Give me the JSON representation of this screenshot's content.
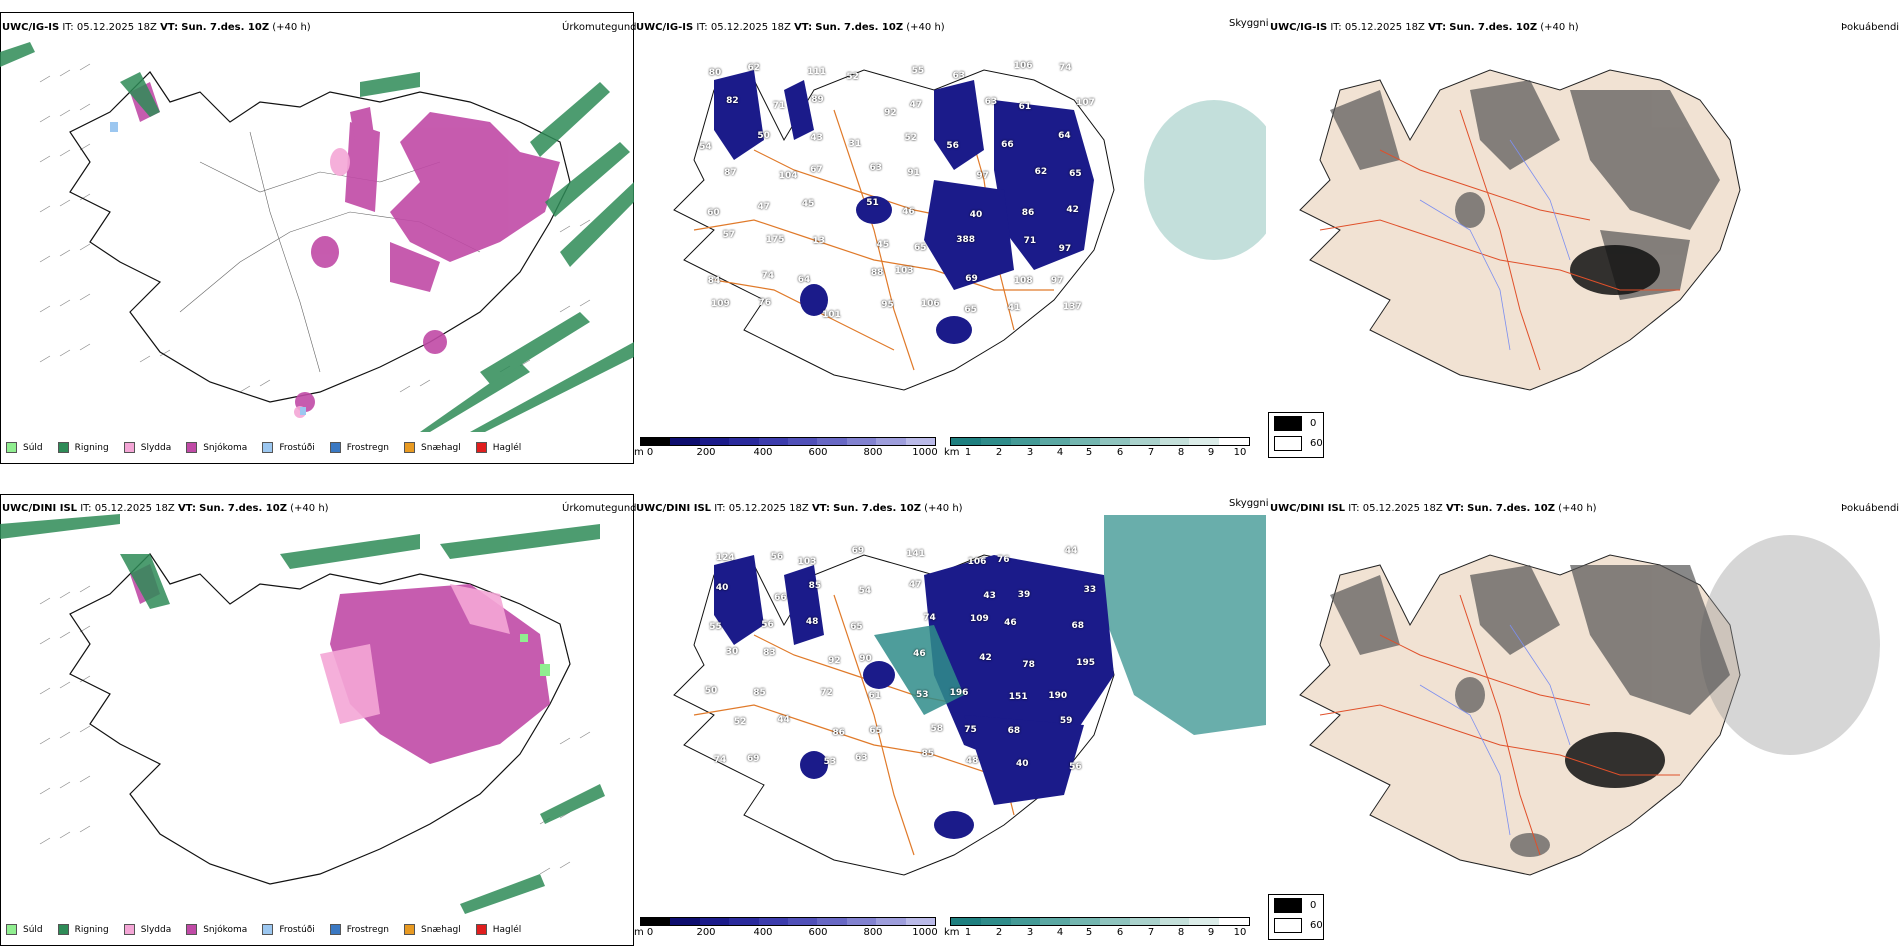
{
  "panels": [
    {
      "row": "top",
      "col": "left",
      "model": "UWC/IG-IS",
      "it_label": "IT:",
      "it_value": "05.12.2025 18Z",
      "vt_label": "VT:",
      "vt_value": "Sun. 7.des. 10Z",
      "lead": "(+40 h)",
      "title": "Úrkomutegund"
    },
    {
      "row": "top",
      "col": "mid",
      "model": "UWC/IG-IS",
      "it_label": "IT:",
      "it_value": "05.12.2025 18Z",
      "vt_label": "VT:",
      "vt_value": "Sun. 7.des. 10Z",
      "lead": "(+40 h)",
      "title": "Skyggni"
    },
    {
      "row": "top",
      "col": "right",
      "model": "UWC/IG-IS",
      "it_label": "IT:",
      "it_value": "05.12.2025 18Z",
      "vt_label": "VT:",
      "vt_value": "Sun. 7.des. 10Z",
      "lead": "(+40 h)",
      "title": "Þokuábendi"
    },
    {
      "row": "bottom",
      "col": "left",
      "model": "UWC/DINI ISL",
      "it_label": "IT:",
      "it_value": "05.12.2025 18Z",
      "vt_label": "VT:",
      "vt_value": "Sun. 7.des. 10Z",
      "lead": "(+40 h)",
      "title": "Úrkomutegund"
    },
    {
      "row": "bottom",
      "col": "mid",
      "model": "UWC/DINI ISL",
      "it_label": "IT:",
      "it_value": "05.12.2025 18Z",
      "vt_label": "VT:",
      "vt_value": "Sun. 7.des. 10Z",
      "lead": "(+40 h)",
      "title": "Skyggni"
    },
    {
      "row": "bottom",
      "col": "right",
      "model": "UWC/DINI ISL",
      "it_label": "IT:",
      "it_value": "05.12.2025 18Z",
      "vt_label": "VT:",
      "vt_value": "Sun. 7.des. 10Z",
      "lead": "(+40 h)",
      "title": "Þokuábendi"
    }
  ],
  "precip_legend": [
    {
      "label": "Súld",
      "color": "#90ee90"
    },
    {
      "label": "Rigning",
      "color": "#2e8b57"
    },
    {
      "label": "Slydda",
      "color": "#f4a6d6"
    },
    {
      "label": "Snjókoma",
      "color": "#c04aa6"
    },
    {
      "label": "Frostúði",
      "color": "#9cc7f0"
    },
    {
      "label": "Frostregn",
      "color": "#3a78c2"
    },
    {
      "label": "Snæhagl",
      "color": "#e89a22"
    },
    {
      "label": "Haglél",
      "color": "#e01e1e"
    }
  ],
  "height_scale": {
    "unit": "m",
    "ticks": [
      "0",
      "200",
      "400",
      "600",
      "800",
      "1000"
    ],
    "colors": [
      "#000000",
      "#0d0d6e",
      "#1b1b8a",
      "#2a2a9c",
      "#3c3cac",
      "#5050b8",
      "#6868c4",
      "#8282d0",
      "#9e9edc",
      "#babae8"
    ]
  },
  "visibility_scale": {
    "unit": "km",
    "ticks": [
      "1",
      "2",
      "3",
      "4",
      "5",
      "6",
      "7",
      "8",
      "9",
      "10"
    ],
    "colors": [
      "#1e7f7f",
      "#2f8c8a",
      "#449a96",
      "#5ba8a3",
      "#74b6b0",
      "#8fc4be",
      "#aad2cc",
      "#c4e0da",
      "#dcede9",
      "#ffffff"
    ]
  },
  "fog_legend": {
    "items": [
      {
        "label": "0",
        "color": "#000000"
      },
      {
        "label": "60",
        "color": "#ffffff"
      }
    ]
  },
  "visibility_labels_top": [
    "80",
    "62",
    "111",
    "52",
    "55",
    "63",
    "106",
    "74",
    "82",
    "71",
    "89",
    "92",
    "47",
    "63",
    "61",
    "107",
    "54",
    "50",
    "43",
    "31",
    "52",
    "56",
    "66",
    "64",
    "87",
    "104",
    "67",
    "63",
    "91",
    "97",
    "62",
    "65",
    "60",
    "47",
    "45",
    "51",
    "46",
    "40",
    "86",
    "42",
    "57",
    "175",
    "13",
    "45",
    "65",
    "388",
    "71",
    "97",
    "84",
    "74",
    "64",
    "88",
    "103",
    "69",
    "108",
    "97",
    "109",
    "76",
    "101",
    "95",
    "106",
    "65",
    "41",
    "137"
  ],
  "visibility_labels_bottom": [
    "124",
    "56",
    "103",
    "69",
    "141",
    "106",
    "76",
    "44",
    "40",
    "66",
    "85",
    "54",
    "47",
    "43",
    "39",
    "33",
    "55",
    "56",
    "48",
    "65",
    "74",
    "109",
    "46",
    "68",
    "30",
    "83",
    "92",
    "90",
    "46",
    "42",
    "78",
    "195",
    "50",
    "85",
    "72",
    "61",
    "53",
    "196",
    "151",
    "190",
    "52",
    "44",
    "86",
    "65",
    "58",
    "75",
    "68",
    "59",
    "74",
    "69",
    "53",
    "63",
    "85",
    "48",
    "40",
    "56"
  ]
}
